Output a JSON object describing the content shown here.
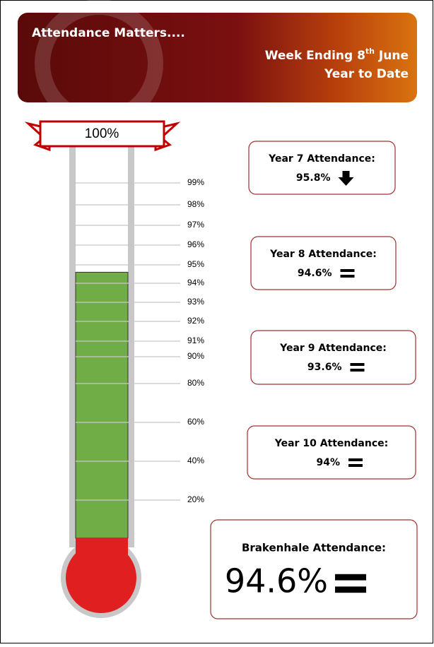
{
  "header": {
    "title": "Attendance Matters....",
    "week": [
      "Week Ending 8",
      "th",
      " June"
    ],
    "period": "Year to Date"
  },
  "chart_data": {
    "type": "thermometer",
    "top_label": "100%",
    "value": 94.6,
    "color": "#70ad47",
    "bulb_color": "#e02020",
    "ylim": [
      0,
      100
    ],
    "yticks": [
      {
        "value": 99,
        "label": "99%"
      },
      {
        "value": 98,
        "label": "98%"
      },
      {
        "value": 97,
        "label": "97%"
      },
      {
        "value": 96,
        "label": "96%"
      },
      {
        "value": 95,
        "label": "95%"
      },
      {
        "value": 94,
        "label": "94%"
      },
      {
        "value": 93,
        "label": "93%"
      },
      {
        "value": 92,
        "label": "92%"
      },
      {
        "value": 91,
        "label": "91%"
      },
      {
        "value": 90,
        "label": "90%"
      },
      {
        "value": 80,
        "label": "80%"
      },
      {
        "value": 60,
        "label": "60%"
      },
      {
        "value": 40,
        "label": "40%"
      },
      {
        "value": 20,
        "label": "20%"
      }
    ]
  },
  "cards": [
    {
      "label": "Year 7 Attendance:",
      "value": "95.8%",
      "trend": "down"
    },
    {
      "label": "Year 8 Attendance:",
      "value": "94.6%",
      "trend": "equal"
    },
    {
      "label": "Year 9 Attendance:",
      "value": "93.6%",
      "trend": "equal"
    },
    {
      "label": "Year 10 Attendance:",
      "value": "94%",
      "trend": "equal"
    },
    {
      "label": "Brakenhale Attendance:",
      "value": "94.6%",
      "trend": "equal"
    }
  ]
}
